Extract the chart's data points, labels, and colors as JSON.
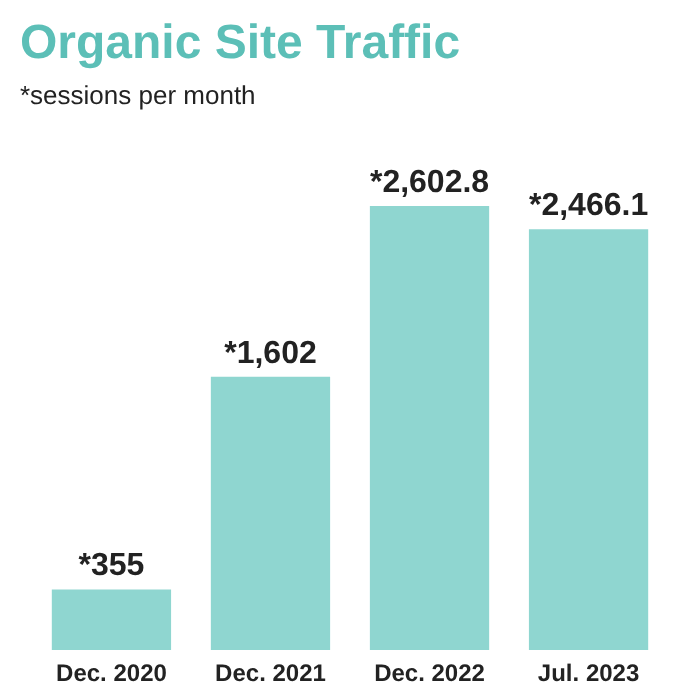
{
  "chart_data": {
    "type": "bar",
    "title": "Organic Site Traffic",
    "subtitle": "*sessions per month",
    "categories": [
      "Dec. 2020",
      "Dec. 2021",
      "Dec. 2022",
      "Jul. 2023"
    ],
    "values": [
      355,
      1602,
      2602.8,
      2466.1
    ],
    "value_labels": [
      "*355",
      "*1,602",
      "*2,602.8",
      "*2,466.1"
    ],
    "color": "#8fd6d0",
    "grid": false,
    "tick_labels": "x"
  }
}
